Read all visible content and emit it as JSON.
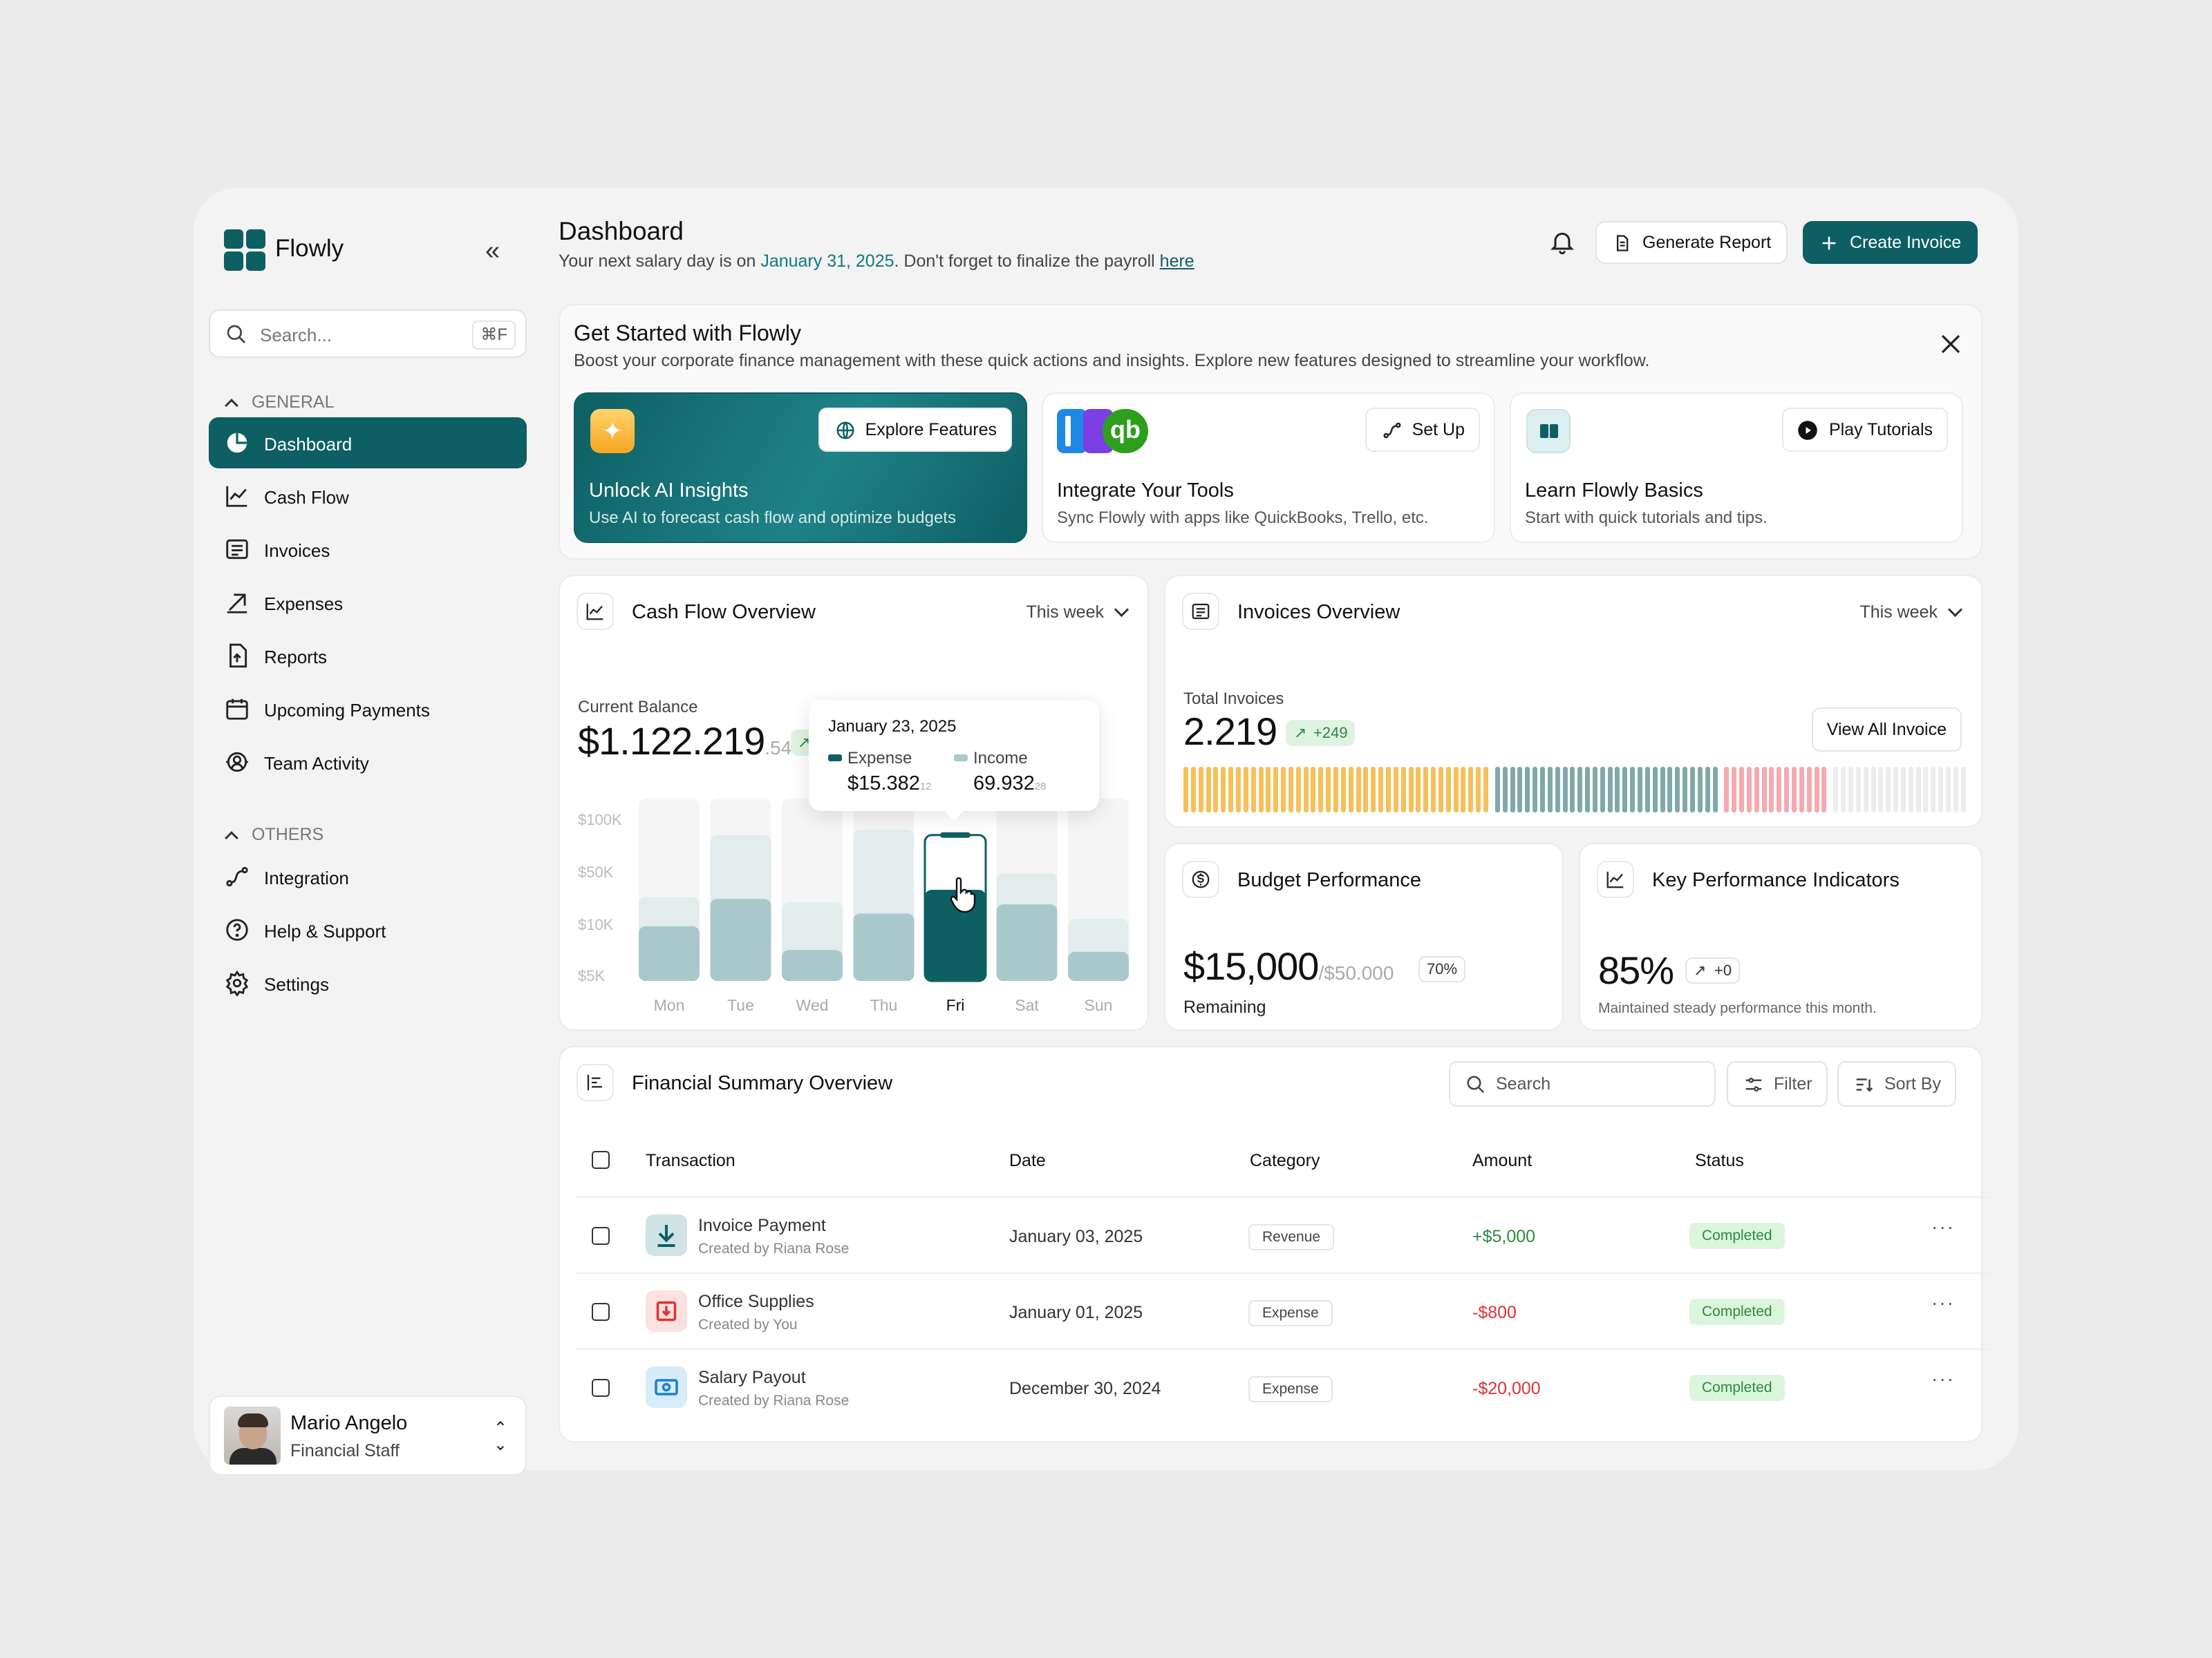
{
  "app": {
    "name": "Flowly"
  },
  "search": {
    "placeholder": "Search...",
    "shortcut": "⌘F"
  },
  "sidebar": {
    "general_label": "GENERAL",
    "others_label": "OTHERS",
    "items": [
      {
        "label": "Dashboard",
        "icon": "pie-chart-icon"
      },
      {
        "label": "Cash Flow",
        "icon": "trend-chart-icon"
      },
      {
        "label": "Invoices",
        "icon": "invoice-icon"
      },
      {
        "label": "Expenses",
        "icon": "arrow-up-right-icon"
      },
      {
        "label": "Reports",
        "icon": "file-upload-icon"
      },
      {
        "label": "Upcoming Payments",
        "icon": "calendar-icon"
      },
      {
        "label": "Team Activity",
        "icon": "team-icon"
      }
    ],
    "others": [
      {
        "label": "Integration",
        "icon": "integration-icon"
      },
      {
        "label": "Help & Support",
        "icon": "help-icon"
      },
      {
        "label": "Settings",
        "icon": "gear-icon"
      }
    ]
  },
  "user": {
    "name": "Mario Angelo",
    "role": "Financial Staff"
  },
  "header": {
    "title": "Dashboard",
    "subtitle_pre": "Your next salary day is on",
    "subtitle_date": "January 31, 2025",
    "subtitle_post": ". Don't forget to finalize the payroll",
    "subtitle_link": "here",
    "generate_label": "Generate Report",
    "create_label": "Create Invoice"
  },
  "get_started": {
    "title": "Get Started with Flowly",
    "subtitle": "Boost your corporate finance management with these quick actions and insights. Explore new features designed to streamline your workflow.",
    "tiles": [
      {
        "title": "Unlock AI Insights",
        "desc": "Use AI to forecast cash flow and optimize budgets",
        "button": "Explore Features"
      },
      {
        "title": "Integrate Your Tools",
        "desc": "Sync Flowly with apps like QuickBooks, Trello, etc.",
        "button": "Set Up"
      },
      {
        "title": "Learn Flowly Basics",
        "desc": "Start with quick tutorials and tips.",
        "button": "Play Tutorials"
      }
    ]
  },
  "cashflow": {
    "title": "Cash Flow Overview",
    "period": "This week",
    "balance_label": "Current Balance",
    "balance": "$1.122.219",
    "balance_cents": ".54",
    "tooltip": {
      "date": "January 23, 2025",
      "expense_label": "Expense",
      "expense": "$15.382",
      "expense_cents": "12",
      "income_label": "Income",
      "income": "69.932",
      "income_cents": "28"
    }
  },
  "chart_data": {
    "type": "bar",
    "categories": [
      "Mon",
      "Tue",
      "Wed",
      "Thu",
      "Fri",
      "Sat",
      "Sun"
    ],
    "yticks": [
      "$100K",
      "$50K",
      "$10K",
      "$5K"
    ],
    "series": [
      {
        "name": "Expense",
        "values": [
          30,
          45,
          17,
          37,
          50,
          42,
          16
        ]
      },
      {
        "name": "Income",
        "values": [
          46,
          80,
          43,
          83,
          80,
          59,
          34
        ]
      }
    ],
    "highlight": "Fri",
    "ylim": [
      0,
      100
    ]
  },
  "invoices": {
    "title": "Invoices Overview",
    "period": "This week",
    "total_label": "Total Invoices",
    "total": "2.219",
    "delta": "+249",
    "button": "View All Invoice",
    "bar_segments": [
      {
        "color": "#f5c05a",
        "count": 41
      },
      {
        "color": "#7fa8ab",
        "count": 30
      },
      {
        "color": "#f5a9b0",
        "count": 14
      },
      {
        "color": "#ececec",
        "count": 18
      }
    ]
  },
  "budget": {
    "title": "Budget Performance",
    "amount": "$15,000",
    "total": "/$50.000",
    "percent": "70%",
    "label": "Remaining"
  },
  "kpi": {
    "title": "Key Performance Indicators",
    "value": "85%",
    "delta": "+0",
    "desc": "Maintained steady performance this month."
  },
  "summary": {
    "title": "Financial Summary Overview",
    "search_placeholder": "Search",
    "filter": "Filter",
    "sort": "Sort By",
    "columns": [
      "Transaction",
      "Date",
      "Category",
      "Amount",
      "Status"
    ],
    "rows": [
      {
        "name": "Invoice Payment",
        "by": "Created by Riana Rose",
        "date": "January 03, 2025",
        "category": "Revenue",
        "amount": "+$5,000",
        "status": "Completed",
        "icon": "download-icon",
        "color": "#2b8a3e"
      },
      {
        "name": "Office Supplies",
        "by": "Created by You",
        "date": "January 01, 2025",
        "category": "Expense",
        "amount": "-$800",
        "status": "Completed",
        "icon": "receipt-icon",
        "color": "#e03131"
      },
      {
        "name": "Salary Payout",
        "by": "Created by Riana Rose",
        "date": "December 30, 2024",
        "category": "Expense",
        "amount": "-$20,000",
        "status": "Completed",
        "icon": "cash-icon",
        "color": "#e03131"
      }
    ]
  }
}
